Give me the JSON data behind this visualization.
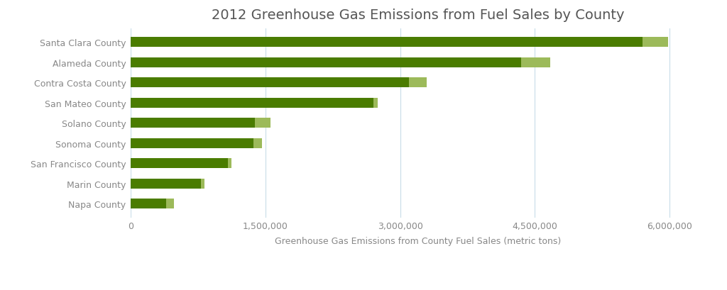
{
  "title": "2012 Greenhouse Gas Emissions from Fuel Sales by County",
  "xlabel": "Greenhouse Gas Emissions from County Fuel Sales (metric tons)",
  "counties": [
    "Santa Clara County",
    "Alameda County",
    "Contra Costa County",
    "San Mateo County",
    "Solano County",
    "Sonoma County",
    "San Francisco County",
    "Marin County",
    "Napa County"
  ],
  "gasoline": [
    5700000,
    4350000,
    3100000,
    2700000,
    1380000,
    1370000,
    1080000,
    780000,
    390000
  ],
  "diesel": [
    290000,
    320000,
    200000,
    50000,
    175000,
    90000,
    40000,
    40000,
    90000
  ],
  "gasoline_color": "#4a7c00",
  "diesel_color": "#9cba5a",
  "background_color": "#ffffff",
  "title_color": "#555555",
  "label_color": "#888888",
  "grid_color": "#c8dce8",
  "xlim": [
    0,
    6400000
  ],
  "xticks": [
    0,
    1500000,
    3000000,
    4500000,
    6000000
  ],
  "xtick_labels": [
    "0",
    "1,500,000",
    "3,000,000",
    "4,500,000",
    "6,000,000"
  ],
  "bar_height": 0.5,
  "title_fontsize": 14,
  "axis_fontsize": 9,
  "legend_fontsize": 9.5
}
